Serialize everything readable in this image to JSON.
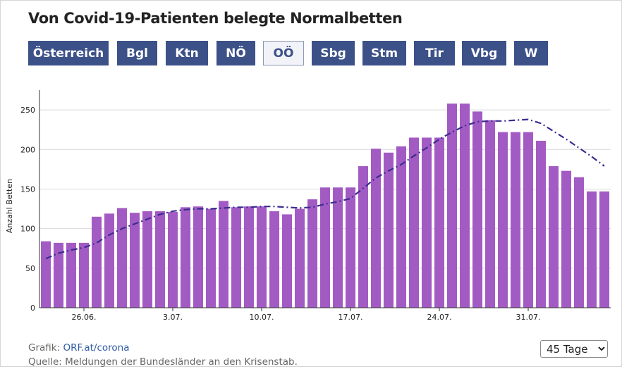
{
  "title": "Von Covid-19-Patienten belegte Normalbetten",
  "tabs": [
    {
      "label": "Österreich",
      "active": false
    },
    {
      "label": "Bgl",
      "active": false
    },
    {
      "label": "Ktn",
      "active": false
    },
    {
      "label": "NÖ",
      "active": false
    },
    {
      "label": "OÖ",
      "active": true
    },
    {
      "label": "Sbg",
      "active": false
    },
    {
      "label": "Stm",
      "active": false
    },
    {
      "label": "Tir",
      "active": false
    },
    {
      "label": "Vbg",
      "active": false
    },
    {
      "label": "W",
      "active": false
    }
  ],
  "colors": {
    "bar": "#a35bc4",
    "line": "#3b2c8f",
    "tab": "#3d5189"
  },
  "chart_data": {
    "type": "bar",
    "ylabel": "Anzahl Betten",
    "ylim": [
      0,
      275
    ],
    "yticks": [
      0,
      50,
      100,
      150,
      200,
      250
    ],
    "grid": true,
    "xtick_labels": [
      {
        "index": 3,
        "label": "26.06."
      },
      {
        "index": 10,
        "label": "3.07."
      },
      {
        "index": 17,
        "label": "10.07."
      },
      {
        "index": 24,
        "label": "17.07."
      },
      {
        "index": 31,
        "label": "24.07."
      },
      {
        "index": 38,
        "label": "31.07."
      }
    ],
    "bars": [
      84,
      82,
      82,
      82,
      115,
      119,
      126,
      120,
      122,
      122,
      121,
      127,
      128,
      125,
      135,
      127,
      128,
      128,
      122,
      118,
      125,
      137,
      152,
      152,
      152,
      179,
      201,
      196,
      204,
      215,
      215,
      215,
      258,
      258,
      248,
      237,
      222,
      222,
      222,
      211,
      179,
      173,
      165,
      147,
      147
    ],
    "trend": [
      62,
      69,
      73,
      76,
      82,
      92,
      100,
      106,
      112,
      118,
      122,
      124,
      125,
      125,
      126,
      127,
      127,
      128,
      128,
      127,
      126,
      127,
      131,
      134,
      138,
      151,
      164,
      173,
      181,
      192,
      202,
      213,
      222,
      230,
      235,
      236,
      236,
      237,
      238,
      233,
      223,
      213,
      202,
      191,
      179
    ]
  },
  "footer": {
    "grafik_label": "Grafik:",
    "grafik_link": "ORF.at/corona",
    "source": "Quelle: Meldungen der Bundesländer an den Krisenstab."
  },
  "range_select": {
    "options": [
      "45 Tage"
    ],
    "selected": "45 Tage"
  }
}
